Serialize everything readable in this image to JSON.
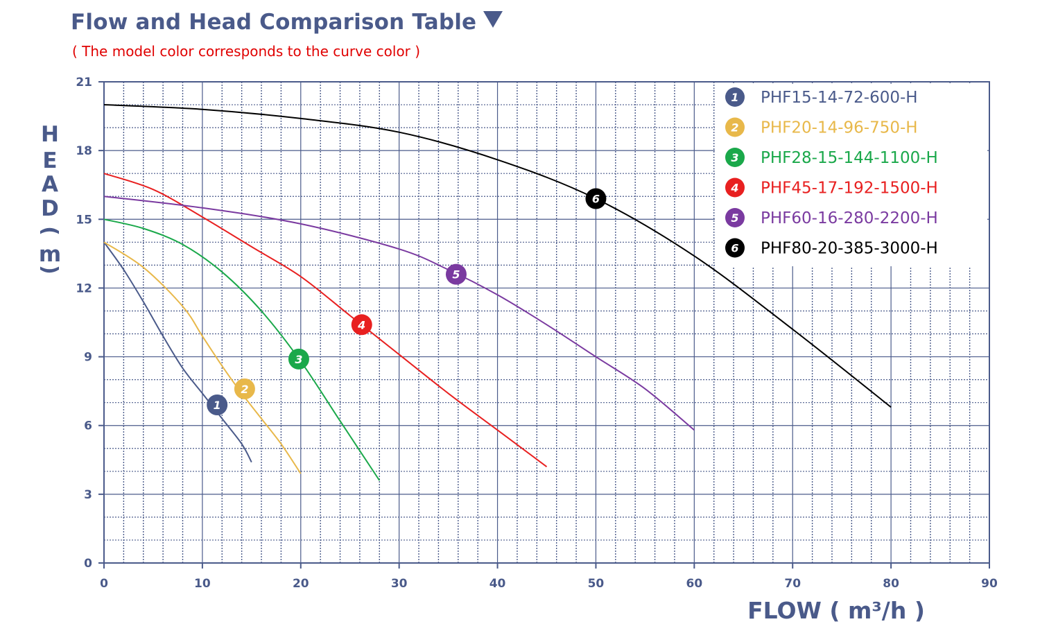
{
  "title": "Flow and Head Comparison Table",
  "subtitle": "( The model color corresponds to the curve color )",
  "chart_data": {
    "type": "line",
    "title": "Flow and Head Comparison Table",
    "subtitle": "( The model color corresponds to the curve color )",
    "xlabel": "FLOW ( m³/h )",
    "ylabel": "HEAD ( m )",
    "xlim": [
      0,
      90
    ],
    "ylim": [
      0,
      21
    ],
    "xticks": [
      0,
      10,
      20,
      30,
      40,
      50,
      60,
      70,
      80,
      90
    ],
    "yticks": [
      0,
      3,
      6,
      9,
      12,
      15,
      18,
      21
    ],
    "grid": true,
    "legend_position": "top-right",
    "series": [
      {
        "name": "PHF15-14-72-600-H",
        "marker": "1",
        "color": "#4a5a8a",
        "marker_at": [
          11.5,
          6.9
        ],
        "x": [
          0,
          2,
          4,
          6,
          8,
          10,
          12,
          14,
          15
        ],
        "y": [
          14.0,
          12.8,
          11.4,
          9.9,
          8.5,
          7.4,
          6.3,
          5.2,
          4.4
        ]
      },
      {
        "name": "PHF20-14-96-750-H",
        "marker": "2",
        "color": "#e8b84a",
        "marker_at": [
          14.3,
          7.6
        ],
        "x": [
          0,
          4,
          8,
          10,
          12,
          14,
          16,
          18,
          20
        ],
        "y": [
          14.0,
          12.9,
          11.2,
          9.9,
          8.6,
          7.4,
          6.3,
          5.2,
          3.9
        ]
      },
      {
        "name": "PHF28-15-144-1100-H",
        "marker": "3",
        "color": "#1aa84a",
        "marker_at": [
          19.8,
          8.9
        ],
        "x": [
          0,
          4,
          8,
          12,
          16,
          20,
          24,
          28
        ],
        "y": [
          15.0,
          14.6,
          13.9,
          12.7,
          11.0,
          8.8,
          6.2,
          3.6
        ]
      },
      {
        "name": "PHF45-17-192-1500-H",
        "marker": "4",
        "color": "#e82020",
        "marker_at": [
          26.2,
          10.4
        ],
        "x": [
          0,
          5,
          10,
          15,
          20,
          25,
          30,
          35,
          40,
          45
        ],
        "y": [
          17.0,
          16.3,
          15.1,
          13.8,
          12.5,
          10.8,
          9.1,
          7.4,
          5.8,
          4.2
        ]
      },
      {
        "name": "PHF60-16-280-2200-H",
        "marker": "5",
        "color": "#7a3aa0",
        "marker_at": [
          35.8,
          12.6
        ],
        "x": [
          0,
          10,
          20,
          30,
          35,
          40,
          45,
          50,
          55,
          60
        ],
        "y": [
          16.0,
          15.5,
          14.8,
          13.7,
          12.8,
          11.7,
          10.4,
          9.0,
          7.6,
          5.8
        ]
      },
      {
        "name": "PHF80-20-385-3000-H",
        "marker": "6",
        "color": "#000000",
        "marker_at": [
          50.0,
          15.9
        ],
        "x": [
          0,
          10,
          20,
          30,
          40,
          50,
          60,
          70,
          80
        ],
        "y": [
          20.0,
          19.8,
          19.4,
          18.8,
          17.6,
          15.9,
          13.4,
          10.2,
          6.8
        ]
      }
    ]
  }
}
